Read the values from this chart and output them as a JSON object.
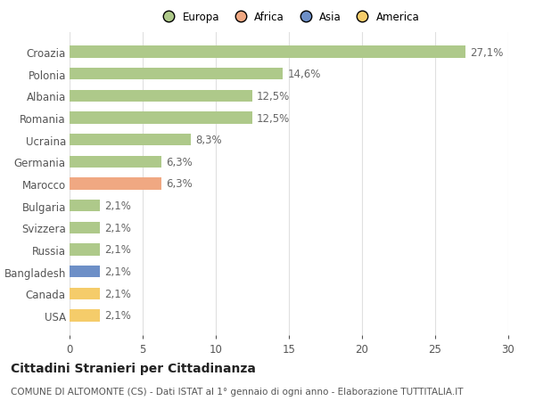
{
  "categories": [
    "Croazia",
    "Polonia",
    "Albania",
    "Romania",
    "Ucraina",
    "Germania",
    "Marocco",
    "Bulgaria",
    "Svizzera",
    "Russia",
    "Bangladesh",
    "Canada",
    "USA"
  ],
  "values": [
    27.1,
    14.6,
    12.5,
    12.5,
    8.3,
    6.3,
    6.3,
    2.1,
    2.1,
    2.1,
    2.1,
    2.1,
    2.1
  ],
  "labels": [
    "27,1%",
    "14,6%",
    "12,5%",
    "12,5%",
    "8,3%",
    "6,3%",
    "6,3%",
    "2,1%",
    "2,1%",
    "2,1%",
    "2,1%",
    "2,1%",
    "2,1%"
  ],
  "continents": [
    "Europa",
    "Europa",
    "Europa",
    "Europa",
    "Europa",
    "Europa",
    "Africa",
    "Europa",
    "Europa",
    "Europa",
    "Asia",
    "America",
    "America"
  ],
  "colors": {
    "Europa": "#aec98a",
    "Africa": "#f0a882",
    "Asia": "#6d8fc7",
    "America": "#f5cc6a"
  },
  "legend_labels": [
    "Europa",
    "Africa",
    "Asia",
    "America"
  ],
  "legend_colors": [
    "#aec98a",
    "#f0a882",
    "#6d8fc7",
    "#f5cc6a"
  ],
  "xlim": [
    0,
    30
  ],
  "xticks": [
    0,
    5,
    10,
    15,
    20,
    25,
    30
  ],
  "title": "Cittadini Stranieri per Cittadinanza",
  "subtitle": "COMUNE DI ALTOMONTE (CS) - Dati ISTAT al 1° gennaio di ogni anno - Elaborazione TUTTITALIA.IT",
  "background_color": "#ffffff",
  "grid_color": "#e0e0e0",
  "bar_height": 0.55,
  "label_fontsize": 8.5,
  "tick_fontsize": 8.5,
  "title_fontsize": 10,
  "subtitle_fontsize": 7.5
}
